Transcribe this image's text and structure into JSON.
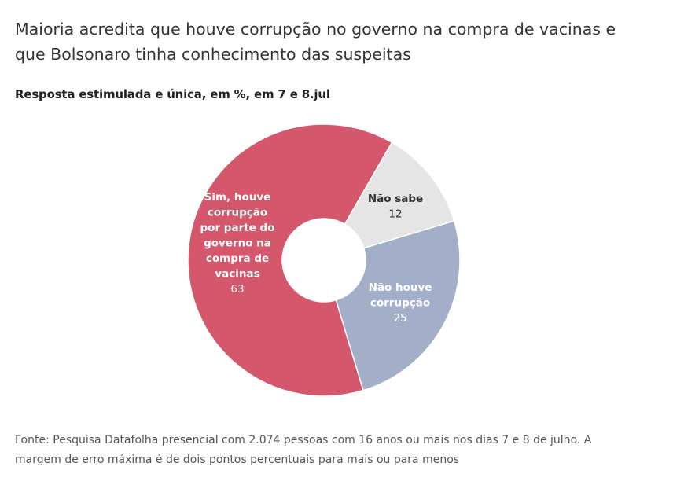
{
  "header": {
    "title": "Maioria acredita que houve corrupção no governo na compra de vacinas e que Bolsonaro tinha conhecimento das suspeitas",
    "subtitle": "Resposta estimulada e única, em %, em 7 e 8.jul"
  },
  "chart_data": {
    "type": "pie",
    "donut": true,
    "title": "",
    "slices": [
      {
        "label_lines": [
          "Não sabe"
        ],
        "value": 12,
        "color": "#e5e5e5",
        "text_color": "#333333"
      },
      {
        "label_lines": [
          "Não houve",
          "corrupção"
        ],
        "value": 25,
        "color": "#a3aec9",
        "text_color": "#ffffff"
      },
      {
        "label_lines": [
          "Sim, houve",
          "corrupção",
          "por parte do",
          "governo na",
          "compra de",
          "vacinas"
        ],
        "value": 63,
        "color": "#d4576b",
        "text_color": "#ffffff"
      }
    ],
    "start_angle_deg": 30,
    "legend": "none"
  },
  "footer": {
    "source": "Fonte: Pesquisa Datafolha presencial com 2.074 pessoas com 16 anos ou mais nos dias 7 e 8 de julho. A margem de erro máxima é de dois pontos percentuais para mais ou para menos"
  }
}
